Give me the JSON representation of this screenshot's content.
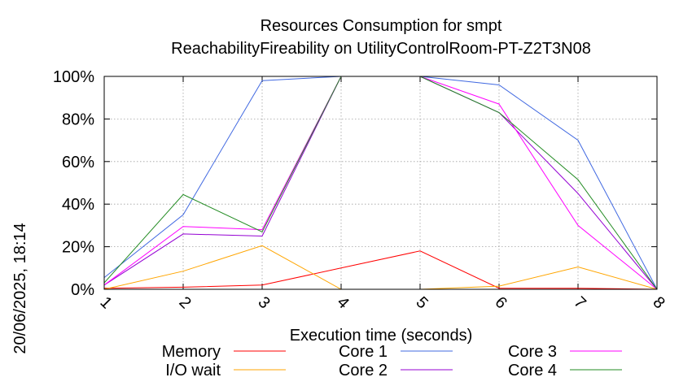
{
  "chart_data": {
    "type": "line",
    "title": "Resources Consumption for smpt",
    "subtitle": "ReachabilityFireability on UtilityControlRoom-PT-Z2T3N08",
    "xlabel": "Execution time (seconds)",
    "ylabel": "",
    "side_label": "20/06/2025, 18:14",
    "xlim": [
      1,
      8
    ],
    "ylim": [
      0,
      100
    ],
    "x_ticks": [
      "1",
      "2",
      "3",
      "4",
      "5",
      "6",
      "7",
      "8"
    ],
    "y_ticks": [
      "0%",
      "20%",
      "40%",
      "60%",
      "80%",
      "100%"
    ],
    "grid": true,
    "legend_position": "bottom",
    "x": [
      1,
      2,
      3,
      4,
      5,
      6,
      7,
      8
    ],
    "series": [
      {
        "name": "Memory",
        "color": "#ff0000",
        "values": [
          0.5,
          1,
          2,
          10,
          18,
          0.5,
          0.5,
          0
        ]
      },
      {
        "name": "I/O wait",
        "color": "#ffa500",
        "values": [
          0,
          8.5,
          20.5,
          0,
          0,
          1.5,
          10.5,
          0
        ]
      },
      {
        "name": "Core 1",
        "color": "#4169e1",
        "values": [
          5.5,
          35,
          98,
          100,
          100,
          96,
          70,
          0
        ]
      },
      {
        "name": "Core 2",
        "color": "#9400d3",
        "values": [
          2,
          26,
          25,
          100,
          100,
          83,
          45,
          0
        ]
      },
      {
        "name": "Core 3",
        "color": "#ff00ff",
        "values": [
          2,
          29.5,
          28,
          100,
          100,
          87,
          30,
          0
        ]
      },
      {
        "name": "Core 4",
        "color": "#228b22",
        "values": [
          3,
          44.5,
          27,
          100,
          100,
          83,
          51.5,
          0
        ]
      }
    ]
  }
}
